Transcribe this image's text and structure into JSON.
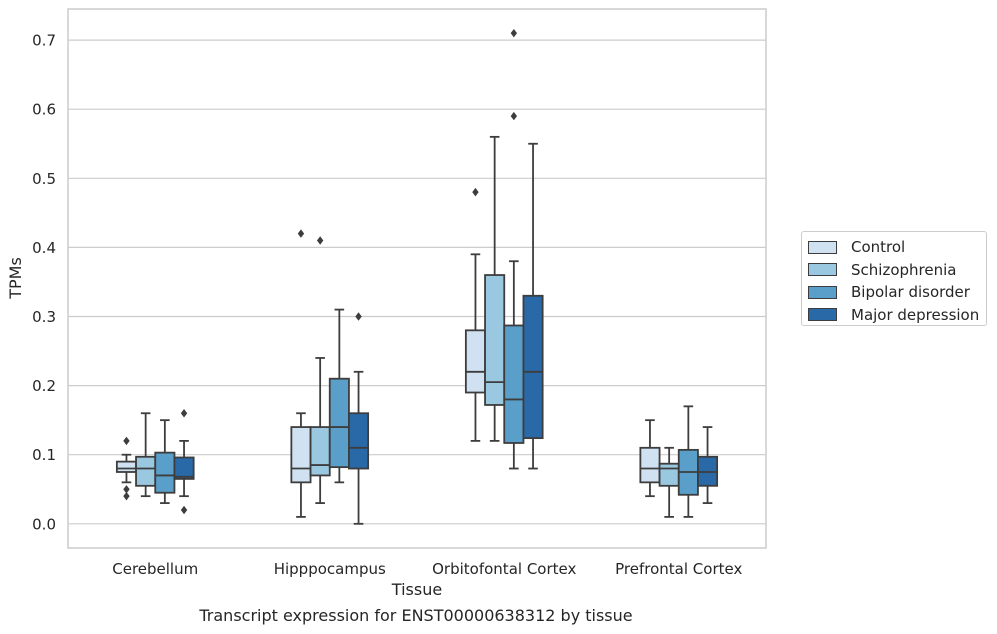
{
  "caption": "Transcript expression for ENST00000638312 by tissue",
  "chart_data": {
    "type": "box",
    "xlabel": "Tissue",
    "ylabel": "TPMs",
    "ylim": [
      -0.035,
      0.745
    ],
    "yticks": [
      "0.0",
      "0.1",
      "0.2",
      "0.3",
      "0.4",
      "0.5",
      "0.6",
      "0.7"
    ],
    "grid": true,
    "legend_position": "right",
    "categories": [
      "Cerebellum",
      "Hipppocampus",
      "Orbitofontal Cortex",
      "Prefrontal Cortex"
    ],
    "series": [
      {
        "name": "Control",
        "color": "#d0e1f2",
        "boxes": [
          {
            "whisker_low": 0.06,
            "q1": 0.075,
            "median": 0.08,
            "q3": 0.09,
            "whisker_high": 0.1,
            "outliers": [
              0.12,
              0.05,
              0.04
            ]
          },
          {
            "whisker_low": 0.01,
            "q1": 0.06,
            "median": 0.08,
            "q3": 0.14,
            "whisker_high": 0.16,
            "outliers": [
              0.42
            ]
          },
          {
            "whisker_low": 0.12,
            "q1": 0.19,
            "median": 0.22,
            "q3": 0.28,
            "whisker_high": 0.39,
            "outliers": [
              0.48
            ]
          },
          {
            "whisker_low": 0.04,
            "q1": 0.06,
            "median": 0.08,
            "q3": 0.11,
            "whisker_high": 0.15,
            "outliers": []
          }
        ]
      },
      {
        "name": "Schizophrenia",
        "color": "#9ac8e0",
        "boxes": [
          {
            "whisker_low": 0.04,
            "q1": 0.055,
            "median": 0.08,
            "q3": 0.097,
            "whisker_high": 0.16,
            "outliers": []
          },
          {
            "whisker_low": 0.03,
            "q1": 0.07,
            "median": 0.085,
            "q3": 0.14,
            "whisker_high": 0.24,
            "outliers": [
              0.41
            ]
          },
          {
            "whisker_low": 0.12,
            "q1": 0.172,
            "median": 0.205,
            "q3": 0.36,
            "whisker_high": 0.56,
            "outliers": []
          },
          {
            "whisker_low": 0.01,
            "q1": 0.055,
            "median": 0.08,
            "q3": 0.087,
            "whisker_high": 0.11,
            "outliers": []
          }
        ]
      },
      {
        "name": "Bipolar disorder",
        "color": "#5a9fc9",
        "boxes": [
          {
            "whisker_low": 0.03,
            "q1": 0.045,
            "median": 0.07,
            "q3": 0.103,
            "whisker_high": 0.15,
            "outliers": []
          },
          {
            "whisker_low": 0.06,
            "q1": 0.082,
            "median": 0.14,
            "q3": 0.21,
            "whisker_high": 0.31,
            "outliers": []
          },
          {
            "whisker_low": 0.08,
            "q1": 0.117,
            "median": 0.18,
            "q3": 0.287,
            "whisker_high": 0.38,
            "outliers": [
              0.59,
              0.71
            ]
          },
          {
            "whisker_low": 0.01,
            "q1": 0.042,
            "median": 0.075,
            "q3": 0.107,
            "whisker_high": 0.17,
            "outliers": []
          }
        ]
      },
      {
        "name": "Major depression",
        "color": "#2a69a8",
        "boxes": [
          {
            "whisker_low": 0.04,
            "q1": 0.065,
            "median": 0.068,
            "q3": 0.096,
            "whisker_high": 0.12,
            "outliers": [
              0.16,
              0.02
            ]
          },
          {
            "whisker_low": 0.0,
            "q1": 0.08,
            "median": 0.11,
            "q3": 0.16,
            "whisker_high": 0.22,
            "outliers": [
              0.3
            ]
          },
          {
            "whisker_low": 0.08,
            "q1": 0.124,
            "median": 0.22,
            "q3": 0.33,
            "whisker_high": 0.55,
            "outliers": []
          },
          {
            "whisker_low": 0.03,
            "q1": 0.055,
            "median": 0.075,
            "q3": 0.097,
            "whisker_high": 0.14,
            "outliers": []
          }
        ]
      }
    ]
  }
}
